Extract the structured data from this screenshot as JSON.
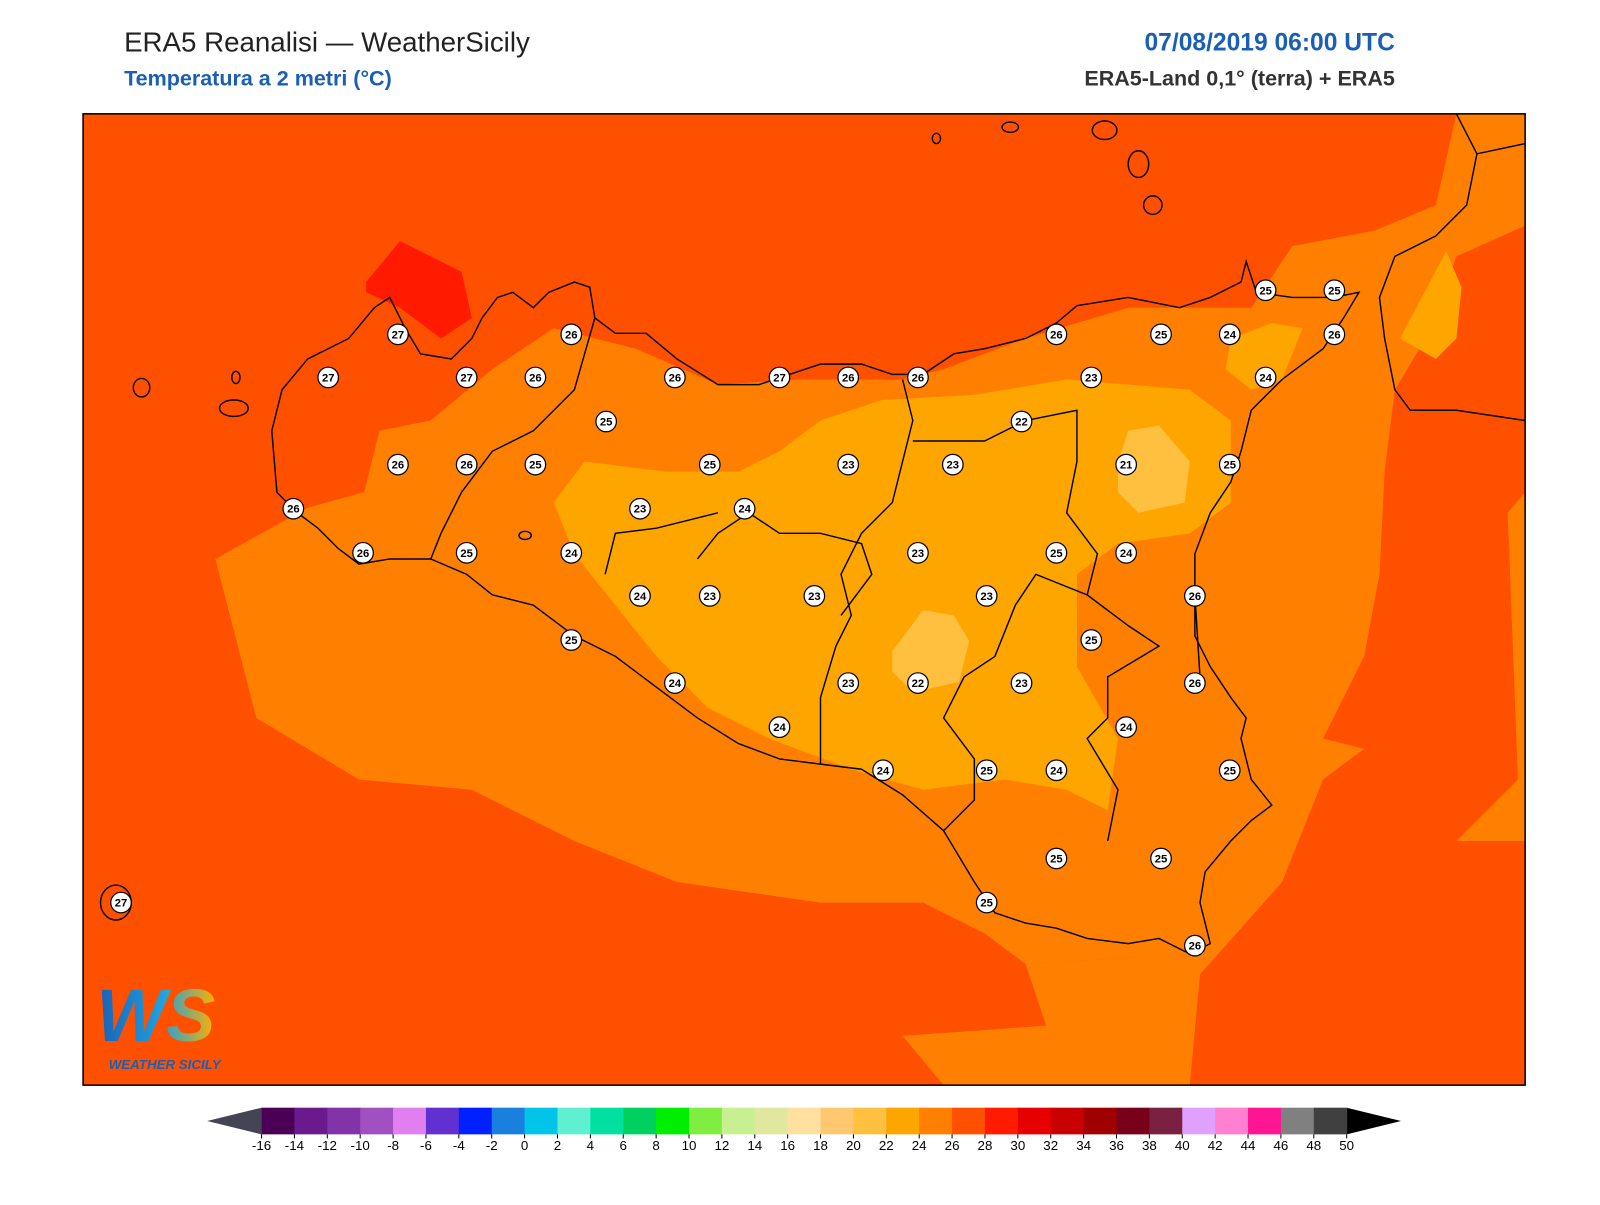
{
  "header": {
    "title": "ERA5 Reanalisi — WeatherSicily",
    "subtitle": "Temperatura a 2 metri (°C)",
    "datetime": "07/08/2019 06:00 UTC",
    "source": "ERA5-Land 0,1° (terra) + ERA5"
  },
  "stations": [
    25,
    25,
    27,
    26,
    26,
    25,
    24,
    26,
    27,
    27,
    26,
    26,
    27,
    26,
    26,
    23,
    24,
    25,
    22,
    26,
    26,
    25,
    25,
    23,
    23,
    21,
    25,
    26,
    23,
    24,
    26,
    25,
    24,
    23,
    25,
    24,
    24,
    23,
    23,
    23,
    26,
    25,
    25,
    24,
    23,
    22,
    23,
    26,
    24,
    24,
    24,
    25,
    24,
    25,
    25,
    25,
    27,
    25,
    26
  ],
  "colorbar": {
    "ticks": [
      -16,
      -14,
      -12,
      -10,
      -8,
      -6,
      -4,
      -2,
      0,
      2,
      4,
      6,
      8,
      10,
      12,
      14,
      16,
      18,
      20,
      22,
      24,
      26,
      28,
      30,
      32,
      34,
      36,
      38,
      40,
      42,
      44,
      46,
      48,
      50
    ],
    "colors": [
      "#4b0055",
      "#6a1a8c",
      "#8333a8",
      "#a050c0",
      "#e080f0",
      "#6030d0",
      "#0020ff",
      "#1a80dd",
      "#00c5e8",
      "#5ef0d0",
      "#00e0a0",
      "#00d060",
      "#00ee00",
      "#80ee40",
      "#c8f090",
      "#e0e8a0",
      "#ffe0a0",
      "#ffc870",
      "#ffc040",
      "#ffa500",
      "#ff8000",
      "#ff5000",
      "#ff1a00",
      "#e60000",
      "#c80000",
      "#a00000",
      "#780018",
      "#7a2040",
      "#e0a0ff",
      "#ff80d0",
      "#ff1493",
      "#808080",
      "#404040"
    ],
    "under_color": "#444455",
    "over_color": "#000000"
  },
  "logo": {
    "mark": "WS",
    "text": "WEATHER SICILY"
  }
}
